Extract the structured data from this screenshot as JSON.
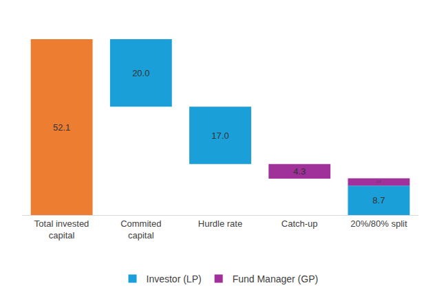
{
  "chart_data": {
    "type": "waterfall",
    "categories": [
      "Total invested capital",
      "Commited capital",
      "Hurdle rate",
      "Catch-up",
      "20%/80% split"
    ],
    "total": {
      "value": 52.1,
      "value_label": "52.1",
      "color": "#ed7d31"
    },
    "series": [
      {
        "name": "Investor (LP)",
        "color": "#1a9fd8",
        "values": [
          null,
          20.0,
          17.0,
          null,
          8.7
        ],
        "value_labels": [
          null,
          "20.0",
          "17.0",
          null,
          "8.7"
        ]
      },
      {
        "name": "Fund Manager (GP)",
        "color": "#a0309a",
        "values": [
          null,
          null,
          null,
          4.3,
          2.2
        ],
        "value_labels": [
          null,
          null,
          null,
          "4.3",
          "2.2"
        ]
      }
    ],
    "ylim": [
      0,
      52.1
    ],
    "data_labels": true,
    "tick_labels": "x",
    "grid": false,
    "legend": "bottom"
  }
}
